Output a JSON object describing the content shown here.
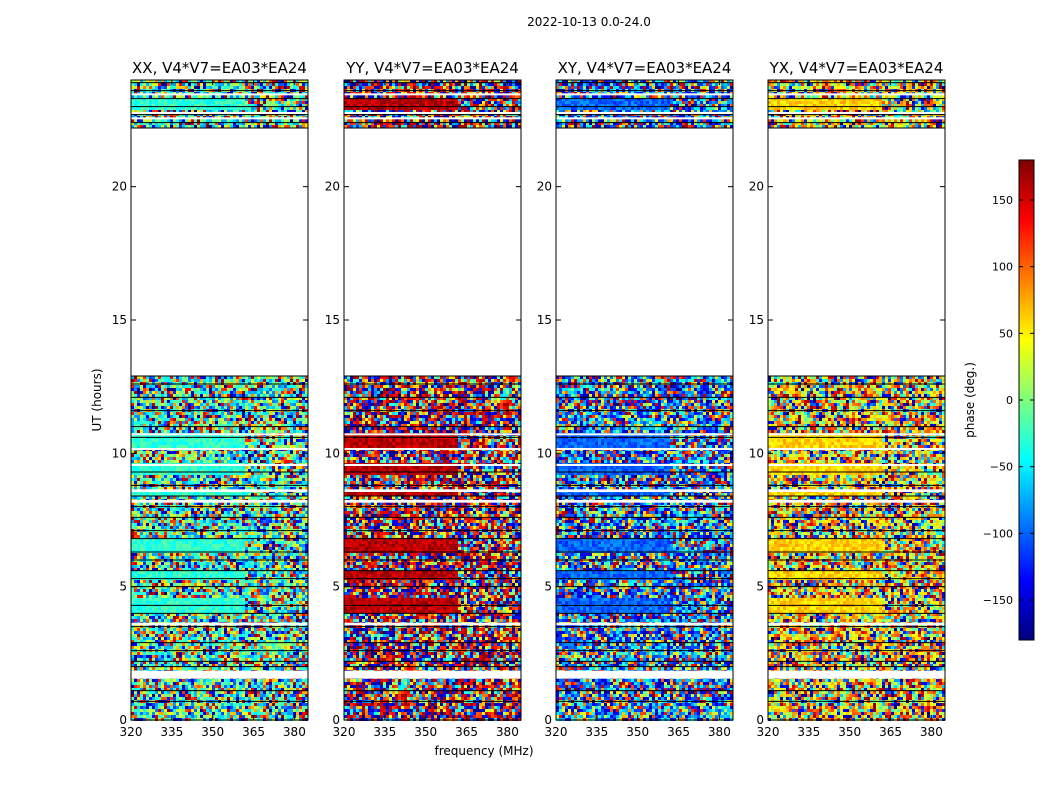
{
  "figure": {
    "title": "2022-10-13 0.0-24.0",
    "xlabel": "frequency (MHz)",
    "ylabel": "UT (hours)"
  },
  "chart_data": {
    "type": "heatmap",
    "description_note": "Phase of visibilities vs frequency and UT for four polarization products",
    "x_range": [
      320,
      385
    ],
    "y_range": [
      0,
      24
    ],
    "x_ticks": [
      320,
      335,
      350,
      365,
      380
    ],
    "y_ticks": [
      0,
      5,
      10,
      15,
      20
    ],
    "data_gap_hours": [
      22.2,
      12.9
    ],
    "colorbar": {
      "label": "phase (deg.)",
      "range": [
        -180,
        180
      ],
      "ticks": [
        150,
        100,
        50,
        0,
        -50,
        -100,
        -150
      ],
      "tick_labels": [
        "150",
        "100",
        "50",
        "0",
        "−50",
        "−100",
        "−150"
      ],
      "colormap": "jet",
      "colors": [
        "#00007f",
        "#0000ff",
        "#007fff",
        "#00ffff",
        "#7fff7f",
        "#ffff00",
        "#ff7f00",
        "#ff0000",
        "#7f0000"
      ]
    },
    "panels": [
      {
        "title": "XX, V4*V7=EA03*EA24",
        "dominant_phase": -30
      },
      {
        "title": "YY, V4*V7=EA03*EA24",
        "dominant_phase": 160
      },
      {
        "title": "XY, V4*V7=EA03*EA24",
        "dominant_phase": -100
      },
      {
        "title": "YX, V4*V7=EA03*EA24",
        "dominant_phase": 60
      }
    ]
  }
}
